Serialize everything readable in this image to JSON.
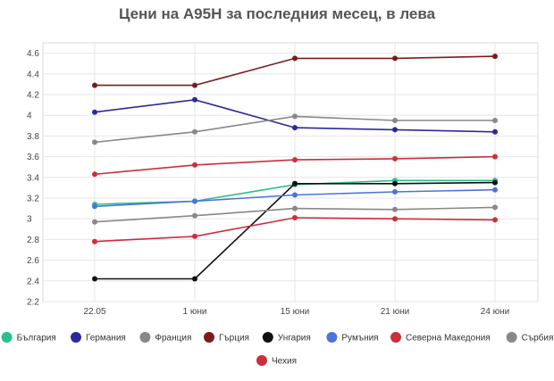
{
  "chart_data": {
    "type": "line",
    "title": "Цени на А95Н за последния месец, в лева",
    "xlabel": "",
    "ylabel": "",
    "categories": [
      "22.05",
      "1 юни",
      "15 юни",
      "21 юни",
      "24 юни"
    ],
    "yticks": [
      "2.2",
      "2.4",
      "2.6",
      "2.8",
      "3",
      "3.2",
      "3.4",
      "3.6",
      "3.8",
      "4",
      "4.2",
      "4.4",
      "4.6"
    ],
    "ylim": [
      2.2,
      4.7
    ],
    "grid": true,
    "legend_position": "bottom",
    "series": [
      {
        "name": "България",
        "color": "#2bbf8a",
        "values": [
          3.14,
          3.17,
          3.33,
          3.37,
          3.37
        ]
      },
      {
        "name": "Германия",
        "color": "#2a2a9c",
        "values": [
          4.03,
          4.15,
          3.88,
          3.86,
          3.84
        ]
      },
      {
        "name": "Франция",
        "color": "#888888",
        "values": [
          3.74,
          3.84,
          3.99,
          3.95,
          3.95
        ]
      },
      {
        "name": "Гърция",
        "color": "#7a1c1c",
        "values": [
          4.29,
          4.29,
          4.55,
          4.55,
          4.57
        ]
      },
      {
        "name": "Унгария",
        "color": "#111111",
        "values": [
          2.42,
          2.42,
          3.34,
          3.34,
          3.35
        ]
      },
      {
        "name": "Румъния",
        "color": "#4a74d9",
        "values": [
          3.12,
          3.17,
          3.23,
          3.26,
          3.28
        ]
      },
      {
        "name": "Северна Македония",
        "color": "#cc2e3a",
        "values": [
          3.43,
          3.52,
          3.57,
          3.58,
          3.6
        ]
      },
      {
        "name": "Сърбия",
        "color": "#888888",
        "values": [
          2.97,
          3.03,
          3.1,
          3.09,
          3.11
        ]
      },
      {
        "name": "Чехия",
        "color": "#cc2e3a",
        "values": [
          2.78,
          2.83,
          3.01,
          3.0,
          2.99
        ]
      }
    ]
  }
}
